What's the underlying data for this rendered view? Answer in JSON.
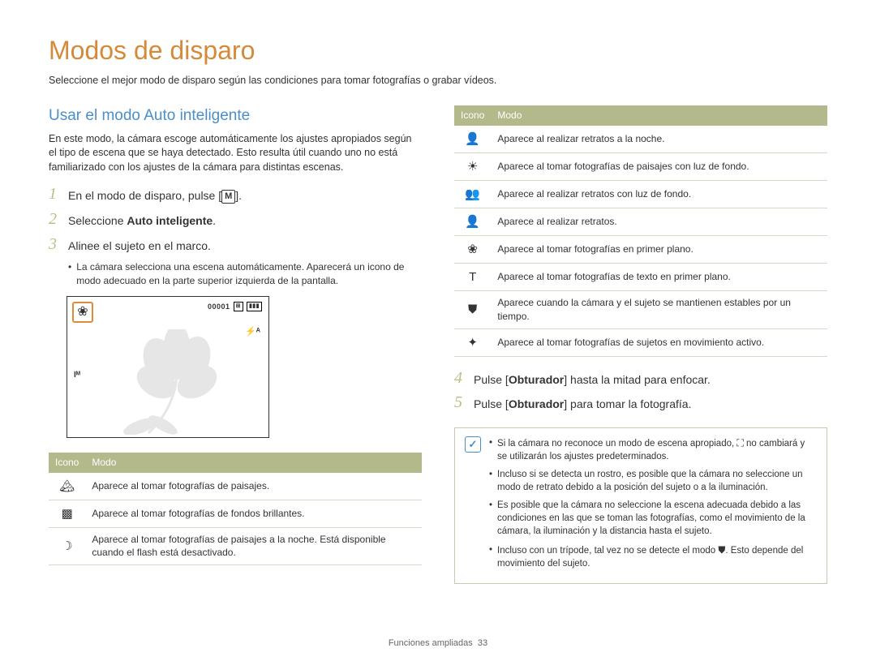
{
  "title": "Modos de disparo",
  "intro": "Seleccione el mejor modo de disparo según las condiciones para tomar fotografías o grabar vídeos.",
  "section_heading": "Usar el modo Auto inteligente",
  "section_intro": "En este modo, la cámara escoge automáticamente los ajustes apropiados según el tipo de escena que se haya detectado. Esto resulta útil cuando uno no está familiarizado con los ajustes de la cámara para distintas escenas.",
  "steps": {
    "s1_pre": "En el modo de disparo, pulse [",
    "s1_post": "].",
    "s2_pre": "Seleccione ",
    "s2_bold": "Auto inteligente",
    "s2_post": ".",
    "s3": "Alinee el sujeto en el marco.",
    "s4_pre": "Pulse [",
    "s4_bold": "Obturador",
    "s4_post": "] hasta la mitad para enfocar.",
    "s5_pre": "Pulse [",
    "s5_bold": "Obturador",
    "s5_post": "] para tomar la fotografía."
  },
  "step_num": {
    "1": "1",
    "2": "2",
    "3": "3",
    "4": "4",
    "5": "5"
  },
  "sub_bullets": [
    "La cámara selecciona una escena automáticamente. Aparecerá un icono de modo adecuado en la parte superior izquierda de la pantalla."
  ],
  "preview": {
    "mode_glyph": "❀",
    "counter": "00001",
    "flash": "⚡ᴬ",
    "left_m": "Iᴹ"
  },
  "table_headers": {
    "icono": "Icono",
    "modo": "Modo"
  },
  "left_rows": [
    {
      "icon": "🏔",
      "desc": "Aparece al tomar fotografías de paisajes."
    },
    {
      "icon": "▩",
      "desc": "Aparece al tomar fotografías de fondos brillantes."
    },
    {
      "icon": "☽",
      "desc": "Aparece al tomar fotografías de paisajes a la noche. Está disponible cuando el flash está desactivado."
    }
  ],
  "right_rows": [
    {
      "icon": "👤",
      "desc": "Aparece al realizar retratos a la noche."
    },
    {
      "icon": "☀",
      "desc": "Aparece al tomar fotografías de paisajes con luz de fondo."
    },
    {
      "icon": "👥",
      "desc": "Aparece al realizar retratos con luz de fondo."
    },
    {
      "icon": "👤",
      "desc": "Aparece al realizar retratos."
    },
    {
      "icon": "❀",
      "desc": "Aparece al tomar fotografías en primer plano."
    },
    {
      "icon": "T",
      "desc": "Aparece al tomar fotografías de texto en primer plano."
    },
    {
      "icon": "⛊",
      "desc": "Aparece cuando la cámara y el sujeto se mantienen estables por un tiempo."
    },
    {
      "icon": "✦",
      "desc": "Aparece al tomar fotografías de sujetos en movimiento activo."
    }
  ],
  "notes": [
    {
      "pre": "Si la cámara no reconoce un modo de escena apropiado, ",
      "icon": "⛶",
      "post": " no cambiará y se utilizarán los ajustes predeterminados."
    },
    {
      "pre": "Incluso si se detecta un rostro, es posible que la cámara no seleccione un modo de retrato debido a la posición del sujeto o a la iluminación.",
      "icon": "",
      "post": ""
    },
    {
      "pre": "Es posible que la cámara no seleccione la escena adecuada debido a las condiciones en las que se toman las fotografías, como el movimiento de la cámara, la iluminación y la distancia hasta el sujeto.",
      "icon": "",
      "post": ""
    },
    {
      "pre": "Incluso con un trípode, tal vez no se detecte el modo ",
      "icon": "⛊",
      "post": ". Esto depende del movimiento del sujeto."
    }
  ],
  "footer": {
    "section": "Funciones ampliadas",
    "page": "33"
  },
  "colors": {
    "title": "#d58a3a",
    "heading": "#4a8fc7",
    "step_num": "#b8c084",
    "table_header_bg": "#b3b98a"
  }
}
